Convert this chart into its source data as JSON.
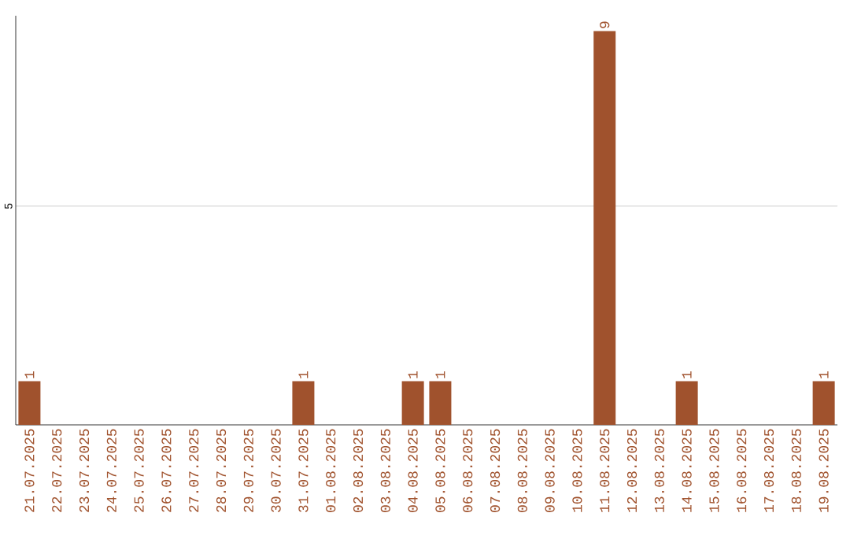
{
  "chart_data": {
    "type": "bar",
    "categories": [
      "21.07.2025",
      "22.07.2025",
      "23.07.2025",
      "24.07.2025",
      "25.07.2025",
      "26.07.2025",
      "27.07.2025",
      "28.07.2025",
      "29.07.2025",
      "30.07.2025",
      "31.07.2025",
      "01.08.2025",
      "02.08.2025",
      "03.08.2025",
      "04.08.2025",
      "05.08.2025",
      "06.08.2025",
      "07.08.2025",
      "08.08.2025",
      "09.08.2025",
      "10.08.2025",
      "11.08.2025",
      "12.08.2025",
      "13.08.2025",
      "14.08.2025",
      "15.08.2025",
      "16.08.2025",
      "17.08.2025",
      "18.08.2025",
      "19.08.2025"
    ],
    "values": [
      1,
      0,
      0,
      0,
      0,
      0,
      0,
      0,
      0,
      0,
      1,
      0,
      0,
      0,
      1,
      1,
      0,
      0,
      0,
      0,
      0,
      9,
      0,
      0,
      1,
      0,
      0,
      0,
      0,
      1
    ],
    "value_labels": [
      "1",
      null,
      null,
      null,
      null,
      null,
      null,
      null,
      null,
      null,
      "1",
      null,
      null,
      null,
      "1",
      "1",
      null,
      null,
      null,
      null,
      null,
      "9",
      null,
      null,
      "1",
      null,
      null,
      null,
      null,
      "1"
    ],
    "color": "#a0522d",
    "ylim": [
      0,
      9.35
    ],
    "yticks": [
      5
    ],
    "grid": "y"
  }
}
